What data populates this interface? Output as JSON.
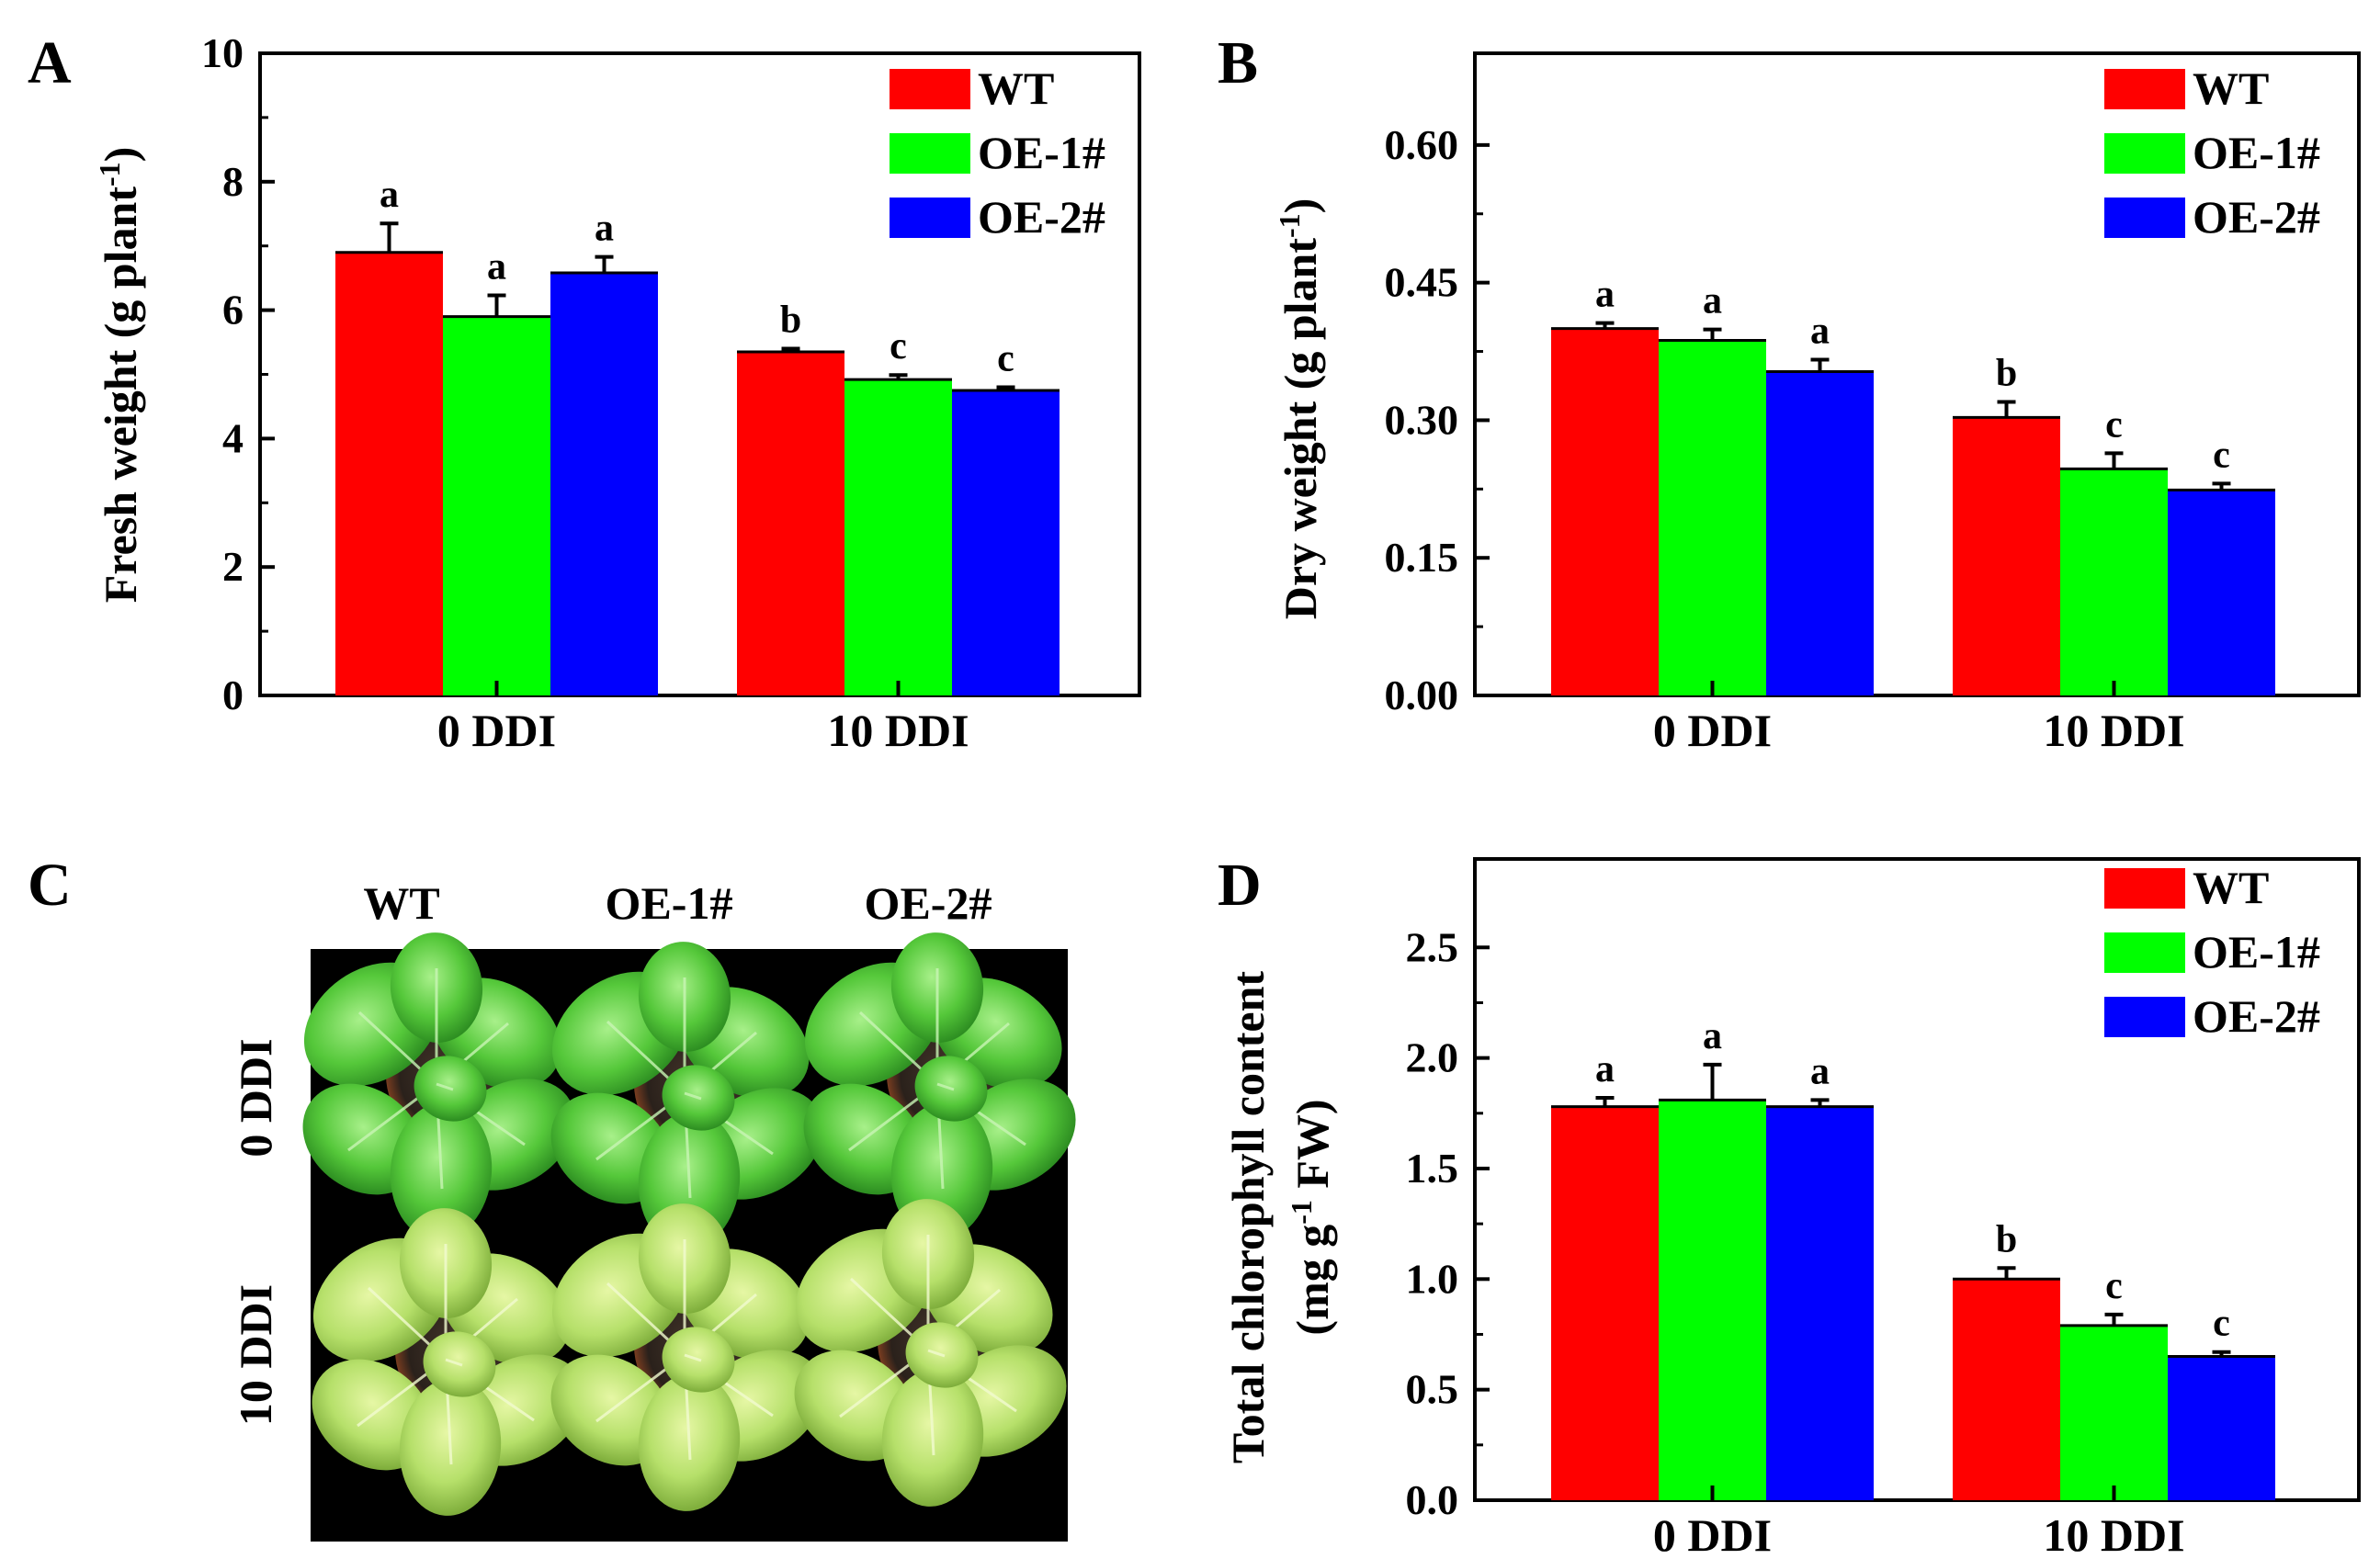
{
  "chart_data": [
    {
      "id": "A",
      "type": "bar",
      "panel_label": "A",
      "categories": [
        "0 DDI",
        "10 DDI"
      ],
      "series": [
        {
          "name": "WT",
          "values": [
            6.9,
            5.35
          ],
          "errors": [
            0.45,
            0.05
          ],
          "letters": [
            "a",
            "b"
          ]
        },
        {
          "name": "OE-1#",
          "values": [
            5.9,
            4.92
          ],
          "errors": [
            0.33,
            0.07
          ],
          "letters": [
            "a",
            "c"
          ]
        },
        {
          "name": "OE-2#",
          "values": [
            6.58,
            4.75
          ],
          "errors": [
            0.25,
            0.05
          ],
          "letters": [
            "a",
            "c"
          ]
        }
      ],
      "ylabel": "Fresh weight (g plant",
      "ylabel_sup": "-1",
      "ylabel_tail": ")",
      "ylim": [
        0,
        10
      ],
      "yticks": [
        0,
        2,
        4,
        6,
        8,
        10
      ],
      "ytick_labels": [
        "0",
        "2",
        "4",
        "6",
        "8",
        "10"
      ],
      "legend_position": "top-right"
    },
    {
      "id": "B",
      "type": "bar",
      "panel_label": "B",
      "categories": [
        "0 DDI",
        "10 DDI"
      ],
      "series": [
        {
          "name": "WT",
          "values": [
            0.4,
            0.303
          ],
          "errors": [
            0.006,
            0.017
          ],
          "letters": [
            "a",
            "b"
          ]
        },
        {
          "name": "OE-1#",
          "values": [
            0.387,
            0.247
          ],
          "errors": [
            0.012,
            0.017
          ],
          "letters": [
            "a",
            "c"
          ]
        },
        {
          "name": "OE-2#",
          "values": [
            0.353,
            0.224
          ],
          "errors": [
            0.013,
            0.007
          ],
          "letters": [
            "a",
            "c"
          ]
        }
      ],
      "ylabel": "Dry weight (g plant",
      "ylabel_sup": "-1",
      "ylabel_tail": ")",
      "ylim": [
        0,
        0.7
      ],
      "yticks": [
        0,
        0.15,
        0.3,
        0.45,
        0.6
      ],
      "ytick_labels": [
        "0.00",
        "0.15",
        "0.30",
        "0.45",
        "0.60"
      ],
      "legend_position": "top-right"
    },
    {
      "id": "D",
      "type": "bar",
      "panel_label": "D",
      "categories": [
        "0 DDI",
        "10 DDI"
      ],
      "series": [
        {
          "name": "WT",
          "values": [
            1.78,
            1.0
          ],
          "errors": [
            0.04,
            0.05
          ],
          "letters": [
            "a",
            "b"
          ]
        },
        {
          "name": "OE-1#",
          "values": [
            1.81,
            0.79
          ],
          "errors": [
            0.16,
            0.05
          ],
          "letters": [
            "a",
            "c"
          ]
        },
        {
          "name": "OE-2#",
          "values": [
            1.78,
            0.65
          ],
          "errors": [
            0.03,
            0.02
          ],
          "letters": [
            "a",
            "c"
          ]
        }
      ],
      "ylabel": "Total chlorophyll content",
      "ylabel2": "(mg g",
      "ylabel2_sup": "-1",
      "ylabel2_tail": " FW)",
      "ylim": [
        0,
        2.9
      ],
      "yticks": [
        0,
        0.5,
        1.0,
        1.5,
        2.0,
        2.5
      ],
      "ytick_labels": [
        "0.0",
        "0.5",
        "1.0",
        "1.5",
        "2.0",
        "2.5"
      ],
      "legend_position": "top-right"
    }
  ],
  "colors": {
    "WT": "#ff0000",
    "OE-1#": "#00ff00",
    "OE-2#": "#0000ff",
    "photo_bg": "#000000"
  },
  "photo_panel": {
    "panel_label": "C",
    "column_labels": [
      "WT",
      "OE-1#",
      "OE-2#"
    ],
    "row_labels": [
      "0 DDI",
      "10 DDI"
    ]
  }
}
